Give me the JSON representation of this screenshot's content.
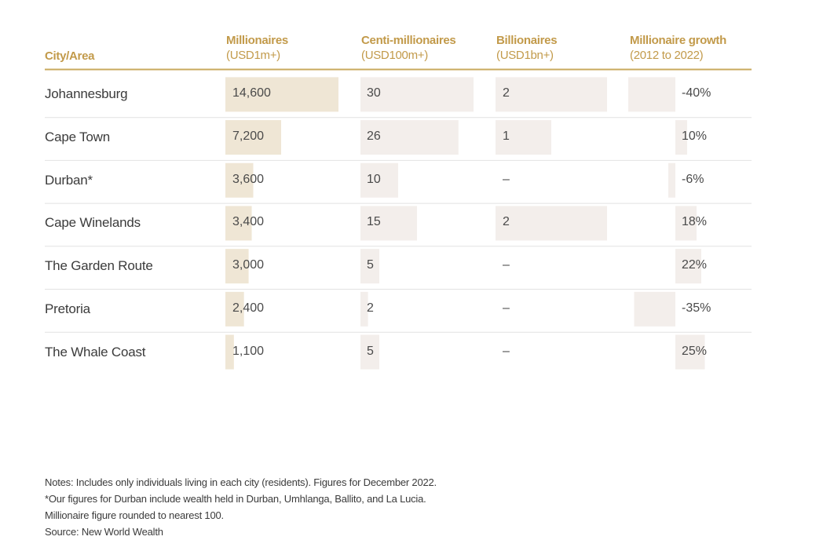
{
  "colors": {
    "header_gold": "#c29a4a",
    "rule_gold": "#c9a95c",
    "millionaire_bar": "#efe6d5",
    "other_bar": "#f3eeeb",
    "row_divider": "#e2e2e2",
    "text": "#3b3b3b"
  },
  "headers": {
    "city": "City/Area",
    "millionaires": "Millionaires",
    "millionaires_unit": "(USD1m+)",
    "centi": "Centi-millionaires",
    "centi_unit": "(USD100m+)",
    "billionaires": "Billionaires",
    "billionaires_unit": "(USD1bn+)",
    "growth": "Millionaire growth",
    "growth_unit": "(2012 to 2022)"
  },
  "chart_data": {
    "type": "table",
    "rows": [
      {
        "city": "Johannesburg",
        "millionaires": "14,600",
        "centi": "30",
        "billionaires": "2",
        "growth": "-40%"
      },
      {
        "city": "Cape Town",
        "millionaires": "7,200",
        "centi": "26",
        "billionaires": "1",
        "growth": "10%"
      },
      {
        "city": "Durban*",
        "millionaires": "3,600",
        "centi": "10",
        "billionaires": "–",
        "growth": "-6%"
      },
      {
        "city": "Cape Winelands",
        "millionaires": "3,400",
        "centi": "15",
        "billionaires": "2",
        "growth": "18%"
      },
      {
        "city": "The Garden Route",
        "millionaires": "3,000",
        "centi": "5",
        "billionaires": "–",
        "growth": "22%"
      },
      {
        "city": "Pretoria",
        "millionaires": "2,400",
        "centi": "2",
        "billionaires": "–",
        "growth": "-35%"
      },
      {
        "city": "The Whale Coast",
        "millionaires": "1,100",
        "centi": "5",
        "billionaires": "–",
        "growth": "25%"
      }
    ],
    "bar_maxima": {
      "millionaires": 14600,
      "centi": 30,
      "billionaires": 2,
      "growth_abs": 40
    }
  },
  "notes": [
    "Notes: Includes only individuals living in each city (residents). Figures for December 2022.",
    "*Our figures for Durban include wealth held in Durban, Umhlanga, Ballito, and La Lucia.",
    "Millionaire figure rounded to nearest 100.",
    "Source: New World Wealth"
  ]
}
